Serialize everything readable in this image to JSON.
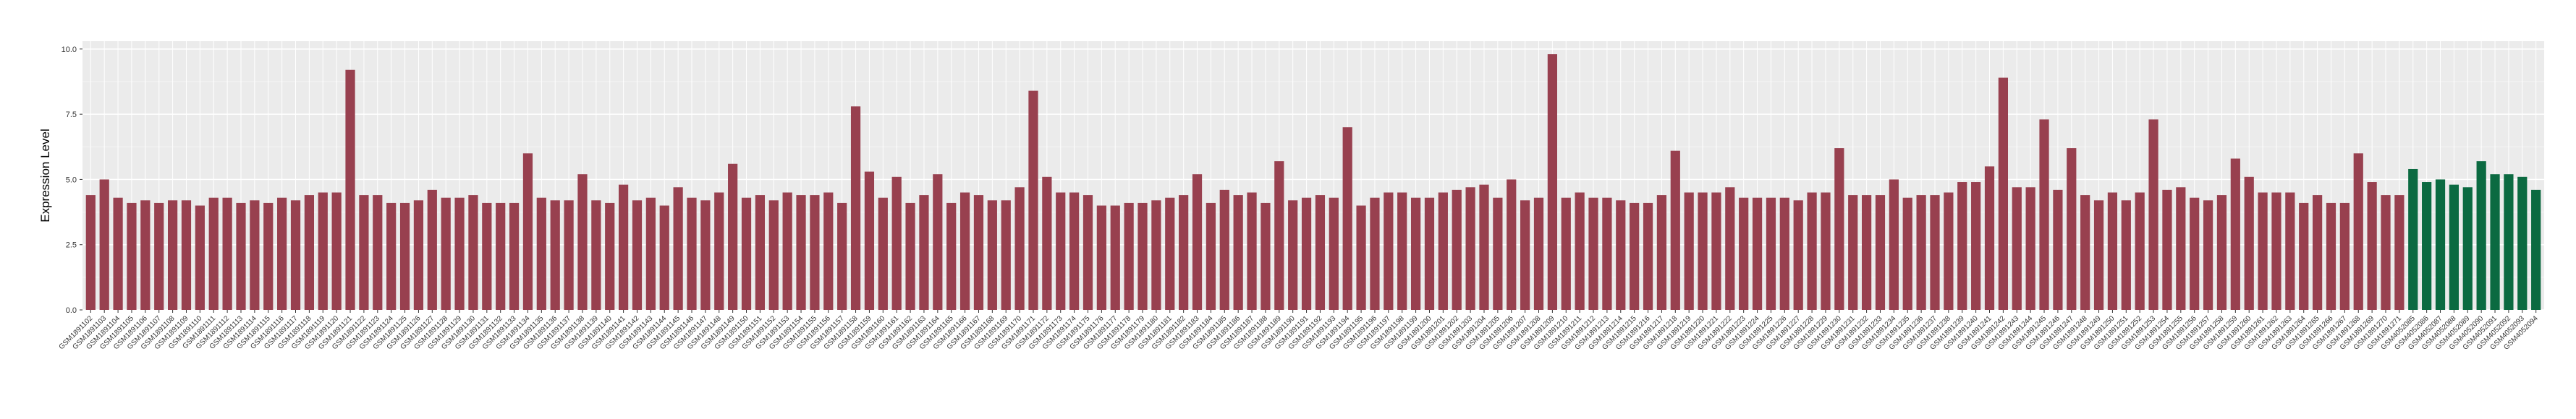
{
  "chart_data": {
    "type": "bar",
    "y_label": "Expression Level",
    "categories": [
      "GSM1891102",
      "GSM1891103",
      "GSM1891104",
      "GSM1891105",
      "GSM1891106",
      "GSM1891107",
      "GSM1891108",
      "GSM1891109",
      "GSM1891110",
      "GSM1891111",
      "GSM1891112",
      "GSM1891113",
      "GSM1891114",
      "GSM1891115",
      "GSM1891116",
      "GSM1891117",
      "GSM1891118",
      "GSM1891119",
      "GSM1891120",
      "GSM1891121",
      "GSM1891122",
      "GSM1891123",
      "GSM1891124",
      "GSM1891125",
      "GSM1891126",
      "GSM1891127",
      "GSM1891128",
      "GSM1891129",
      "GSM1891130",
      "GSM1891131",
      "GSM1891132",
      "GSM1891133",
      "GSM1891134",
      "GSM1891135",
      "GSM1891136",
      "GSM1891137",
      "GSM1891138",
      "GSM1891139",
      "GSM1891140",
      "GSM1891141",
      "GSM1891142",
      "GSM1891143",
      "GSM1891144",
      "GSM1891145",
      "GSM1891146",
      "GSM1891147",
      "GSM1891148",
      "GSM1891149",
      "GSM1891150",
      "GSM1891151",
      "GSM1891152",
      "GSM1891153",
      "GSM1891154",
      "GSM1891155",
      "GSM1891156",
      "GSM1891157",
      "GSM1891158",
      "GSM1891159",
      "GSM1891160",
      "GSM1891161",
      "GSM1891162",
      "GSM1891163",
      "GSM1891164",
      "GSM1891165",
      "GSM1891166",
      "GSM1891167",
      "GSM1891168",
      "GSM1891169",
      "GSM1891170",
      "GSM1891171",
      "GSM1891172",
      "GSM1891173",
      "GSM1891174",
      "GSM1891175",
      "GSM1891176",
      "GSM1891177",
      "GSM1891178",
      "GSM1891179",
      "GSM1891180",
      "GSM1891181",
      "GSM1891182",
      "GSM1891183",
      "GSM1891184",
      "GSM1891185",
      "GSM1891186",
      "GSM1891187",
      "GSM1891188",
      "GSM1891189",
      "GSM1891190",
      "GSM1891191",
      "GSM1891192",
      "GSM1891193",
      "GSM1891194",
      "GSM1891195",
      "GSM1891196",
      "GSM1891197",
      "GSM1891198",
      "GSM1891199",
      "GSM1891200",
      "GSM1891201",
      "GSM1891202",
      "GSM1891203",
      "GSM1891204",
      "GSM1891205",
      "GSM1891206",
      "GSM1891207",
      "GSM1891208",
      "GSM1891209",
      "GSM1891210",
      "GSM1891211",
      "GSM1891212",
      "GSM1891213",
      "GSM1891214",
      "GSM1891215",
      "GSM1891216",
      "GSM1891217",
      "GSM1891218",
      "GSM1891219",
      "GSM1891220",
      "GSM1891221",
      "GSM1891222",
      "GSM1891223",
      "GSM1891224",
      "GSM1891225",
      "GSM1891226",
      "GSM1891227",
      "GSM1891228",
      "GSM1891229",
      "GSM1891230",
      "GSM1891231",
      "GSM1891232",
      "GSM1891233",
      "GSM1891234",
      "GSM1891235",
      "GSM1891236",
      "GSM1891237",
      "GSM1891238",
      "GSM1891239",
      "GSM1891240",
      "GSM1891241",
      "GSM1891242",
      "GSM1891243",
      "GSM1891244",
      "GSM1891245",
      "GSM1891246",
      "GSM1891247",
      "GSM1891248",
      "GSM1891249",
      "GSM1891250",
      "GSM1891251",
      "GSM1891252",
      "GSM1891253",
      "GSM1891254",
      "GSM1891255",
      "GSM1891256",
      "GSM1891257",
      "GSM1891258",
      "GSM1891259",
      "GSM1891260",
      "GSM1891261",
      "GSM1891262",
      "GSM1891263",
      "GSM1891264",
      "GSM1891265",
      "GSM1891266",
      "GSM1891267",
      "GSM1891268",
      "GSM1891269",
      "GSM1891270",
      "GSM1891271",
      "GSM4052085",
      "GSM4052086",
      "GSM4052087",
      "GSM4052088",
      "GSM4052089",
      "GSM4052090",
      "GSM4052091",
      "GSM4052092",
      "GSM4052093",
      "GSM4052094"
    ],
    "series": [
      {
        "color": "#98404f",
        "values": [
          4.4,
          5.0,
          4.3,
          4.1,
          4.2,
          4.1,
          4.2,
          4.2,
          4.0,
          4.3,
          4.3,
          4.1,
          4.2,
          4.1,
          4.3,
          4.2,
          4.4,
          4.5,
          4.5,
          9.2,
          4.4,
          4.4,
          4.1,
          4.1,
          4.2,
          4.6,
          4.3,
          4.3,
          4.4,
          4.1,
          4.1,
          4.1,
          6.0,
          4.3,
          4.2,
          4.2,
          5.2,
          4.2,
          4.1,
          4.8,
          4.2,
          4.3,
          4.0,
          4.7,
          4.3,
          4.2,
          4.5,
          5.6,
          4.3,
          4.4,
          4.2,
          4.5,
          4.4,
          4.4,
          4.5,
          4.1,
          7.8,
          5.3,
          4.3,
          5.1,
          4.1,
          4.4,
          5.2,
          4.1,
          4.5,
          4.4,
          4.2,
          4.2,
          4.7,
          8.4,
          5.1,
          4.5,
          4.5,
          4.4,
          4.0,
          4.0,
          4.1,
          4.1,
          4.2,
          4.3,
          4.4,
          5.2,
          4.1,
          4.6,
          4.4,
          4.5,
          4.1,
          5.7,
          4.2,
          4.3,
          4.4,
          4.3,
          7.0,
          4.0,
          4.3,
          4.5,
          4.5,
          4.3,
          4.3,
          4.5,
          4.6,
          4.7,
          4.8,
          4.3,
          5.0,
          4.2,
          4.3,
          9.8,
          4.3,
          4.5,
          4.3,
          4.3,
          4.2,
          4.1,
          4.1,
          4.4,
          6.1,
          4.5,
          4.5,
          4.5,
          4.7,
          4.3,
          4.3,
          4.3,
          4.3,
          4.2,
          4.5,
          4.5,
          6.2,
          4.4,
          4.4,
          4.4,
          5.0,
          4.3,
          4.4,
          4.4,
          4.5,
          4.9,
          4.9,
          5.5,
          8.9,
          4.7,
          4.7,
          7.3,
          4.6,
          6.2,
          4.4,
          4.2,
          4.5,
          4.2,
          4.5,
          7.3,
          4.6,
          4.7,
          4.3,
          4.2,
          4.4,
          5.8,
          5.1,
          4.5,
          4.5,
          4.5,
          4.1,
          4.4,
          4.1,
          4.1,
          6.0,
          4.9,
          4.4,
          4.4,
          null,
          null,
          null,
          null,
          null,
          null,
          null,
          null,
          null,
          null
        ]
      },
      {
        "color": "#0b6a41",
        "values": [
          null,
          null,
          null,
          null,
          null,
          null,
          null,
          null,
          null,
          null,
          null,
          null,
          null,
          null,
          null,
          null,
          null,
          null,
          null,
          null,
          null,
          null,
          null,
          null,
          null,
          null,
          null,
          null,
          null,
          null,
          null,
          null,
          null,
          null,
          null,
          null,
          null,
          null,
          null,
          null,
          null,
          null,
          null,
          null,
          null,
          null,
          null,
          null,
          null,
          null,
          null,
          null,
          null,
          null,
          null,
          null,
          null,
          null,
          null,
          null,
          null,
          null,
          null,
          null,
          null,
          null,
          null,
          null,
          null,
          null,
          null,
          null,
          null,
          null,
          null,
          null,
          null,
          null,
          null,
          null,
          null,
          null,
          null,
          null,
          null,
          null,
          null,
          null,
          null,
          null,
          null,
          null,
          null,
          null,
          null,
          null,
          null,
          null,
          null,
          null,
          null,
          null,
          null,
          null,
          null,
          null,
          null,
          null,
          null,
          null,
          null,
          null,
          null,
          null,
          null,
          null,
          null,
          null,
          null,
          null,
          null,
          null,
          null,
          null,
          null,
          null,
          null,
          null,
          null,
          null,
          null,
          null,
          null,
          null,
          null,
          null,
          null,
          null,
          null,
          null,
          null,
          null,
          null,
          null,
          null,
          null,
          null,
          null,
          null,
          null,
          null,
          null,
          null,
          null,
          null,
          null,
          null,
          null,
          null,
          null,
          null,
          null,
          null,
          null,
          null,
          null,
          null,
          null,
          null,
          null,
          5.4,
          4.9,
          5.0,
          4.8,
          4.7,
          5.7,
          5.2,
          5.2,
          5.1,
          4.6
        ]
      }
    ],
    "ylim": [
      0,
      10.3
    ],
    "yticks": [
      {
        "value": 0,
        "label": "0.0"
      },
      {
        "value": 2.5,
        "label": "2.5"
      },
      {
        "value": 5,
        "label": "5.0"
      },
      {
        "value": 7.5,
        "label": "7.5"
      },
      {
        "value": 10,
        "label": "10.0"
      }
    ],
    "grid": true
  }
}
